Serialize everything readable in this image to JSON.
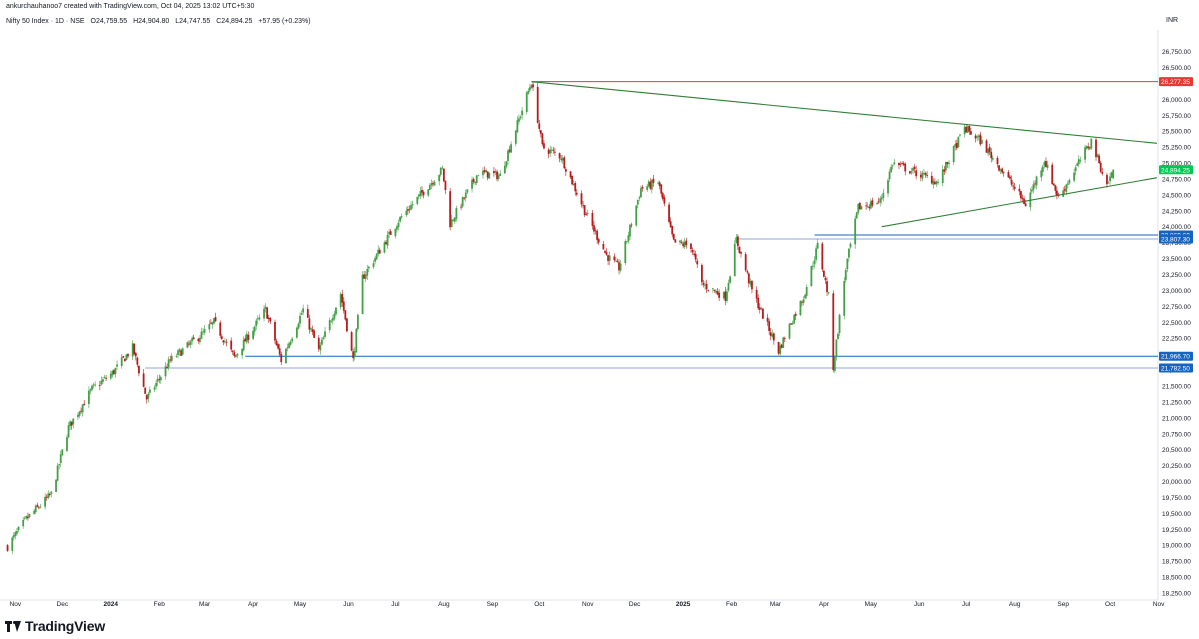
{
  "header": {
    "attribution": "ankurchauhanoo7 created with TradingView.com, Oct 04, 2025 13:02 UTC+5:30"
  },
  "symbol_bar": {
    "name": "Nifty 50 Index · 1D · NSE",
    "open": "O24,759.55",
    "high": "H24,904.80",
    "low": "L24,747.55",
    "close": "C24,894.25",
    "change": "+57.95 (+0.23%)"
  },
  "currency": "INR",
  "footer": {
    "brand": "TradingView"
  },
  "colors": {
    "up": "#43a047",
    "down": "#b71c1c",
    "resistance": "#e53935",
    "trendline": "#2e7d32",
    "support": "#1565c0",
    "support_light": "#90a4d4",
    "last_price": "#00c853"
  },
  "chart_data": {
    "type": "candlestick",
    "title": "Nifty 50 Index · 1D · NSE",
    "y_axis": {
      "range": [
        18250,
        27000
      ],
      "ticks": [
        "26,750.00",
        "26,500.00",
        "26,250.00",
        "26,000.00",
        "25,750.00",
        "25,500.00",
        "25,250.00",
        "25,000.00",
        "24,750.00",
        "24,500.00",
        "24,250.00",
        "24,000.00",
        "23,750.00",
        "23,500.00",
        "23,250.00",
        "23,000.00",
        "22,750.00",
        "22,500.00",
        "22,250.00",
        "22,000.00",
        "21,750.00",
        "21,500.00",
        "21,250.00",
        "21,000.00",
        "20,750.00",
        "20,500.00",
        "20,250.00",
        "20,000.00",
        "19,750.00",
        "19,500.00",
        "19,250.00",
        "19,000.00",
        "18,750.00",
        "18,500.00",
        "18,250.00"
      ]
    },
    "x_axis": {
      "ticks": [
        "Nov",
        "Dec",
        "2024",
        "Feb",
        "Mar",
        "Apr",
        "May",
        "Jun",
        "Jul",
        "Aug",
        "Sep",
        "Oct",
        "Nov",
        "Dec",
        "2025",
        "Feb",
        "Mar",
        "Apr",
        "May",
        "Jun",
        "Jul",
        "Aug",
        "Sep",
        "Oct",
        "Nov"
      ]
    },
    "price_path": [
      {
        "date": "2023-10-27",
        "close": 18980
      },
      {
        "date": "2023-11-08",
        "close": 19410
      },
      {
        "date": "2023-11-24",
        "close": 19800
      },
      {
        "date": "2023-12-05",
        "close": 20850
      },
      {
        "date": "2023-12-20",
        "close": 21450
      },
      {
        "date": "2024-01-02",
        "close": 21700
      },
      {
        "date": "2024-01-15",
        "close": 22100
      },
      {
        "date": "2024-01-24",
        "close": 21300
      },
      {
        "date": "2024-02-08",
        "close": 21900
      },
      {
        "date": "2024-03-01",
        "close": 22350
      },
      {
        "date": "2024-03-07",
        "close": 22500
      },
      {
        "date": "2024-03-20",
        "close": 21950
      },
      {
        "date": "2024-04-09",
        "close": 22700
      },
      {
        "date": "2024-04-19",
        "close": 21900
      },
      {
        "date": "2024-05-03",
        "close": 22700
      },
      {
        "date": "2024-05-13",
        "close": 22050
      },
      {
        "date": "2024-05-27",
        "close": 22950
      },
      {
        "date": "2024-06-04",
        "close": 21900
      },
      {
        "date": "2024-06-10",
        "close": 23200
      },
      {
        "date": "2024-07-03",
        "close": 24100
      },
      {
        "date": "2024-07-31",
        "close": 24900
      },
      {
        "date": "2024-08-05",
        "close": 24050
      },
      {
        "date": "2024-08-23",
        "close": 24850
      },
      {
        "date": "2024-09-06",
        "close": 24800
      },
      {
        "date": "2024-09-26",
        "close": 26277.35
      },
      {
        "date": "2024-10-03",
        "close": 25250
      },
      {
        "date": "2024-10-15",
        "close": 25100
      },
      {
        "date": "2024-10-31",
        "close": 24200
      },
      {
        "date": "2024-11-13",
        "close": 23550
      },
      {
        "date": "2024-11-21",
        "close": 23350
      },
      {
        "date": "2024-12-05",
        "close": 24600
      },
      {
        "date": "2024-12-16",
        "close": 24700
      },
      {
        "date": "2024-12-26",
        "close": 23750
      },
      {
        "date": "2025-01-06",
        "close": 23700
      },
      {
        "date": "2025-01-13",
        "close": 23100
      },
      {
        "date": "2025-01-28",
        "close": 22900
      },
      {
        "date": "2025-02-04",
        "close": 23800
      },
      {
        "date": "2025-02-14",
        "close": 23000
      },
      {
        "date": "2025-03-03",
        "close": 22050
      },
      {
        "date": "2025-03-11",
        "close": 22500
      },
      {
        "date": "2025-03-19",
        "close": 22900
      },
      {
        "date": "2025-03-28",
        "close": 23700
      },
      {
        "date": "2025-04-04",
        "close": 22900
      },
      {
        "date": "2025-04-07",
        "close": 21800
      },
      {
        "date": "2025-04-15",
        "close": 23350
      },
      {
        "date": "2025-04-23",
        "close": 24300
      },
      {
        "date": "2025-05-07",
        "close": 24400
      },
      {
        "date": "2025-05-15",
        "close": 25000
      },
      {
        "date": "2025-06-13",
        "close": 24700
      },
      {
        "date": "2025-06-30",
        "close": 25550
      },
      {
        "date": "2025-07-10",
        "close": 25350
      },
      {
        "date": "2025-07-25",
        "close": 24850
      },
      {
        "date": "2025-08-08",
        "close": 24350
      },
      {
        "date": "2025-08-20",
        "close": 25050
      },
      {
        "date": "2025-08-29",
        "close": 24450
      },
      {
        "date": "2025-09-19",
        "close": 25350
      },
      {
        "date": "2025-09-29",
        "close": 24650
      },
      {
        "date": "2025-10-03",
        "close": 24894.25
      }
    ],
    "annotations": {
      "horizontal_levels": [
        {
          "value": 26277.35,
          "label": "26,277.35",
          "kind": "resistance"
        },
        {
          "value": 23869.6,
          "label": "23,869.60",
          "kind": "support"
        },
        {
          "value": 23807.3,
          "label": "23,807.30",
          "kind": "support-light"
        },
        {
          "value": 21966.7,
          "label": "21,966.70",
          "kind": "support"
        },
        {
          "value": 21782.5,
          "label": "21,782.50",
          "kind": "support-light"
        }
      ],
      "last_price": {
        "value": 24894.25,
        "label": "24,894.25"
      },
      "trendlines": [
        {
          "from": {
            "date": "2024-09-26",
            "value": 26277.35
          },
          "to": {
            "date": "2025-10-31",
            "value": 25310
          }
        },
        {
          "from": {
            "date": "2025-05-08",
            "value": 24000
          },
          "to": {
            "date": "2025-10-31",
            "value": 24770
          }
        }
      ]
    }
  }
}
